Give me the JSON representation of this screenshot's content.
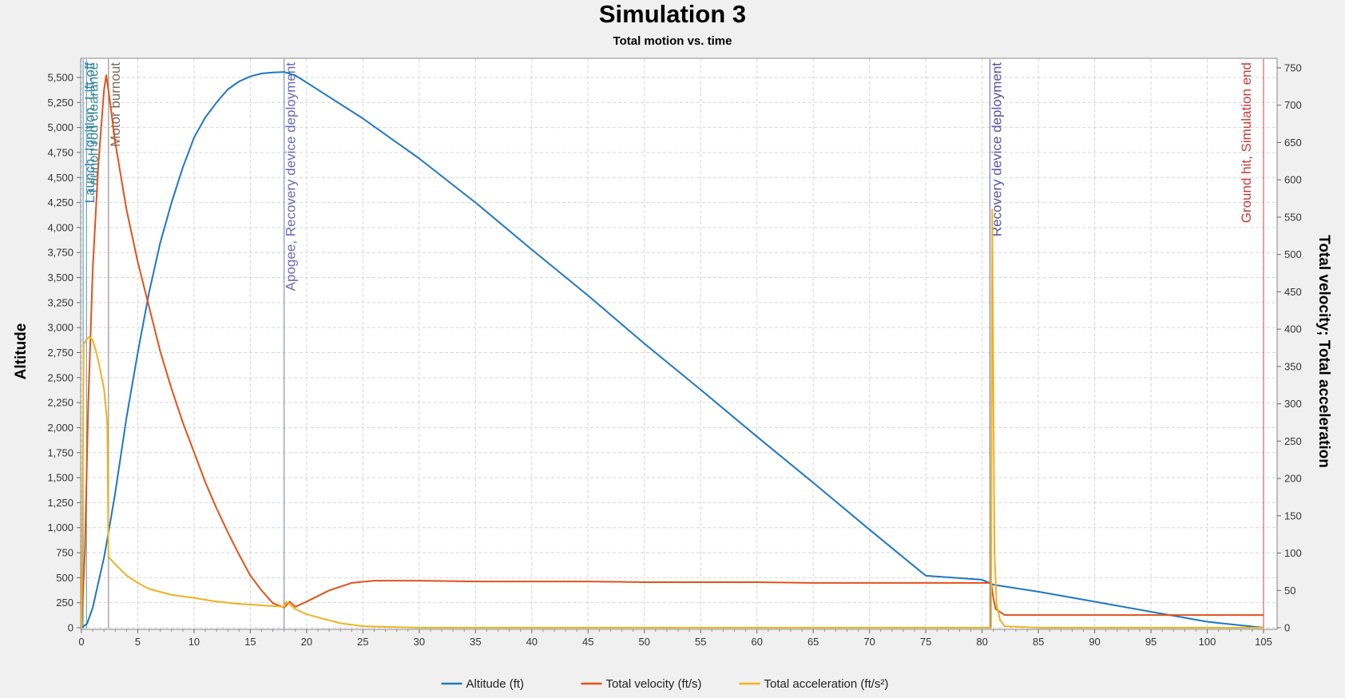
{
  "chart_data": {
    "type": "line",
    "title": "Simulation 3",
    "subtitle": "Total motion vs. time",
    "xlabel": "",
    "ylabel": "Altitude",
    "y2label": "Total velocity; Total acceleration",
    "xlim": [
      0,
      105
    ],
    "ylim": [
      0,
      5750
    ],
    "y2lim": [
      0,
      750
    ],
    "x_ticks": [
      "0",
      "5",
      "10",
      "15",
      "20",
      "25",
      "30",
      "35",
      "40",
      "45",
      "50",
      "55",
      "60",
      "65",
      "70",
      "75",
      "80",
      "85",
      "90",
      "95",
      "100",
      "105"
    ],
    "y_ticks": [
      "0",
      "250",
      "500",
      "750",
      "1,000",
      "1,250",
      "1,500",
      "1,750",
      "2,000",
      "2,250",
      "2,500",
      "2,750",
      "3,000",
      "3,250",
      "3,500",
      "3,750",
      "4,000",
      "4,250",
      "4,500",
      "4,750",
      "5,000",
      "5,250",
      "5,500"
    ],
    "y2_ticks": [
      "0",
      "50",
      "100",
      "150",
      "200",
      "250",
      "300",
      "350",
      "400",
      "450",
      "500",
      "550",
      "600",
      "650",
      "700",
      "750"
    ],
    "grid": true,
    "legend_position": "bottom",
    "series": [
      {
        "name": "Altitude (ft)",
        "axis": "left",
        "color": "#1f77c4",
        "x": [
          0,
          0.5,
          1,
          1.5,
          2,
          2.4,
          3,
          4,
          5,
          6,
          7,
          8,
          9,
          10,
          11,
          12,
          13,
          14,
          15,
          16,
          17,
          18,
          19,
          20,
          25,
          30,
          35,
          40,
          45,
          50,
          55,
          60,
          65,
          70,
          75,
          80,
          81,
          85,
          90,
          95,
          100,
          105
        ],
        "y": [
          0,
          40,
          200,
          450,
          700,
          950,
          1350,
          2100,
          2750,
          3350,
          3850,
          4250,
          4600,
          4900,
          5100,
          5250,
          5380,
          5460,
          5510,
          5540,
          5550,
          5555,
          5520,
          5450,
          5090,
          4690,
          4250,
          3780,
          3320,
          2840,
          2380,
          1910,
          1450,
          980,
          520,
          480,
          430,
          360,
          260,
          160,
          60,
          0
        ]
      },
      {
        "name": "Total velocity (ft/s)",
        "axis": "right",
        "color": "#e2521b",
        "x": [
          0,
          0.3,
          0.6,
          1,
          1.5,
          2,
          2.2,
          2.4,
          3,
          4,
          5,
          6,
          7,
          8,
          9,
          10,
          11,
          12,
          13,
          14,
          15,
          16,
          17,
          18,
          18.5,
          19,
          20,
          22,
          24,
          26,
          30,
          35,
          40,
          45,
          50,
          55,
          60,
          65,
          70,
          75,
          80,
          80.8,
          81,
          81.2,
          82,
          85,
          90,
          95,
          100,
          105
        ],
        "y": [
          0,
          100,
          300,
          480,
          620,
          720,
          740,
          720,
          650,
          560,
          490,
          430,
          370,
          320,
          275,
          235,
          195,
          160,
          128,
          98,
          70,
          50,
          33,
          27,
          35,
          28,
          35,
          50,
          60,
          63,
          63,
          62,
          62,
          62,
          61,
          61,
          61,
          60,
          60,
          60,
          60,
          60,
          40,
          25,
          17,
          17,
          17,
          17,
          17,
          17
        ]
      },
      {
        "name": "Total acceleration (ft/s²)",
        "axis": "right",
        "color": "#efb21e",
        "x": [
          0,
          0.2,
          0.4,
          0.7,
          1,
          1.3,
          1.6,
          2,
          2.2,
          2.3,
          2.4,
          3,
          4,
          5,
          6,
          8,
          10,
          12,
          14,
          16,
          17,
          18,
          18.2,
          19,
          20,
          22,
          23,
          25,
          30,
          40,
          50,
          60,
          70,
          80,
          80.8,
          80.9,
          81,
          81.1,
          81.3,
          81.6,
          82,
          85,
          90,
          95,
          100,
          105
        ],
        "y": [
          0,
          380,
          385,
          390,
          385,
          370,
          350,
          320,
          290,
          270,
          95,
          85,
          70,
          60,
          52,
          44,
          40,
          35,
          32,
          30,
          29,
          28,
          35,
          25,
          18,
          10,
          6,
          2,
          0,
          0,
          0,
          0,
          0,
          0,
          0,
          560,
          330,
          100,
          30,
          10,
          2,
          0,
          0,
          0,
          0,
          0
        ]
      }
    ],
    "events": [
      {
        "label": "Launch, Ignition, Lift-off",
        "x": 0.15,
        "color": "#3b7fb7"
      },
      {
        "label": "Launch rod clearance",
        "x": 0.45,
        "color": "#3b8c8c"
      },
      {
        "label": "Motor burnout",
        "x": 2.4,
        "color": "#7a6a62"
      },
      {
        "label": "Apogee, Recovery device deployment",
        "x": 18.0,
        "color": "#6868b8"
      },
      {
        "label": "Recovery device deployment",
        "x": 80.7,
        "color": "#5151a8"
      },
      {
        "label": "Ground hit, Simulation end",
        "x": 105.0,
        "color": "#c83a3a"
      }
    ]
  }
}
